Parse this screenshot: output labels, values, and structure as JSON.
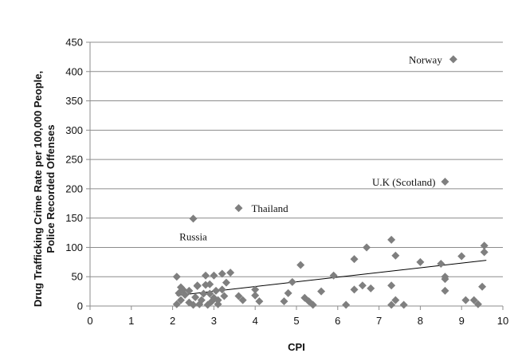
{
  "chart_data": {
    "type": "scatter",
    "title": "",
    "xlabel": "CPI",
    "ylabel_lines": [
      "Drug Trafficking Crime Rate per 100,000 People,",
      "Police Recorded Offenses"
    ],
    "xlim": [
      0,
      10
    ],
    "ylim": [
      0,
      450
    ],
    "xticks": [
      "0",
      "1",
      "2",
      "3",
      "4",
      "5",
      "6",
      "7",
      "8",
      "9",
      "10"
    ],
    "yticks": [
      "0",
      "50",
      "100",
      "150",
      "200",
      "250",
      "300",
      "350",
      "400",
      "450"
    ],
    "grid": true,
    "legend": "none",
    "marker_color": "#7f7f7f",
    "trendline": {
      "x": [
        2.1,
        9.6
      ],
      "y": [
        18,
        78
      ]
    },
    "points": [
      {
        "x": 8.8,
        "y": 421,
        "label": "Norway"
      },
      {
        "x": 8.6,
        "y": 212,
        "label": "U.K (Scotland)"
      },
      {
        "x": 3.6,
        "y": 167,
        "label": "Thailand"
      },
      {
        "x": 2.5,
        "y": 149,
        "label": "Russia"
      },
      {
        "x": 2.1,
        "y": 50
      },
      {
        "x": 2.1,
        "y": 3
      },
      {
        "x": 2.15,
        "y": 22
      },
      {
        "x": 2.2,
        "y": 32
      },
      {
        "x": 2.2,
        "y": 10
      },
      {
        "x": 2.25,
        "y": 28
      },
      {
        "x": 2.3,
        "y": 19
      },
      {
        "x": 2.4,
        "y": 6
      },
      {
        "x": 2.4,
        "y": 26
      },
      {
        "x": 2.5,
        "y": 2
      },
      {
        "x": 2.55,
        "y": 15
      },
      {
        "x": 2.6,
        "y": 35
      },
      {
        "x": 2.6,
        "y": 34
      },
      {
        "x": 2.65,
        "y": 3
      },
      {
        "x": 2.7,
        "y": 10
      },
      {
        "x": 2.75,
        "y": 21
      },
      {
        "x": 2.8,
        "y": 36
      },
      {
        "x": 2.8,
        "y": 52
      },
      {
        "x": 2.85,
        "y": 2
      },
      {
        "x": 2.9,
        "y": 21
      },
      {
        "x": 2.9,
        "y": 37
      },
      {
        "x": 2.95,
        "y": 8
      },
      {
        "x": 3.0,
        "y": 14
      },
      {
        "x": 3.0,
        "y": 52
      },
      {
        "x": 3.05,
        "y": 26
      },
      {
        "x": 3.1,
        "y": 3
      },
      {
        "x": 3.1,
        "y": 10
      },
      {
        "x": 3.2,
        "y": 28
      },
      {
        "x": 3.2,
        "y": 55
      },
      {
        "x": 3.25,
        "y": 17
      },
      {
        "x": 3.3,
        "y": 40
      },
      {
        "x": 3.4,
        "y": 57
      },
      {
        "x": 3.6,
        "y": 17
      },
      {
        "x": 3.7,
        "y": 10
      },
      {
        "x": 4.0,
        "y": 28
      },
      {
        "x": 4.0,
        "y": 18
      },
      {
        "x": 4.1,
        "y": 8
      },
      {
        "x": 4.7,
        "y": 8
      },
      {
        "x": 4.8,
        "y": 22
      },
      {
        "x": 4.9,
        "y": 41
      },
      {
        "x": 5.1,
        "y": 70
      },
      {
        "x": 5.2,
        "y": 14
      },
      {
        "x": 5.3,
        "y": 8
      },
      {
        "x": 5.4,
        "y": 2
      },
      {
        "x": 5.6,
        "y": 25
      },
      {
        "x": 5.9,
        "y": 52
      },
      {
        "x": 6.2,
        "y": 2
      },
      {
        "x": 6.4,
        "y": 28
      },
      {
        "x": 6.4,
        "y": 80
      },
      {
        "x": 6.6,
        "y": 35
      },
      {
        "x": 6.7,
        "y": 100
      },
      {
        "x": 6.8,
        "y": 30
      },
      {
        "x": 7.3,
        "y": 113
      },
      {
        "x": 7.3,
        "y": 35
      },
      {
        "x": 7.3,
        "y": 2
      },
      {
        "x": 7.4,
        "y": 10
      },
      {
        "x": 7.4,
        "y": 86
      },
      {
        "x": 7.6,
        "y": 2
      },
      {
        "x": 8.0,
        "y": 75
      },
      {
        "x": 8.5,
        "y": 72
      },
      {
        "x": 8.6,
        "y": 50
      },
      {
        "x": 8.6,
        "y": 46
      },
      {
        "x": 8.6,
        "y": 26
      },
      {
        "x": 9.0,
        "y": 85
      },
      {
        "x": 9.1,
        "y": 10
      },
      {
        "x": 9.3,
        "y": 10
      },
      {
        "x": 9.4,
        "y": 3
      },
      {
        "x": 9.5,
        "y": 33
      },
      {
        "x": 9.55,
        "y": 92
      },
      {
        "x": 9.55,
        "y": 103
      }
    ]
  }
}
